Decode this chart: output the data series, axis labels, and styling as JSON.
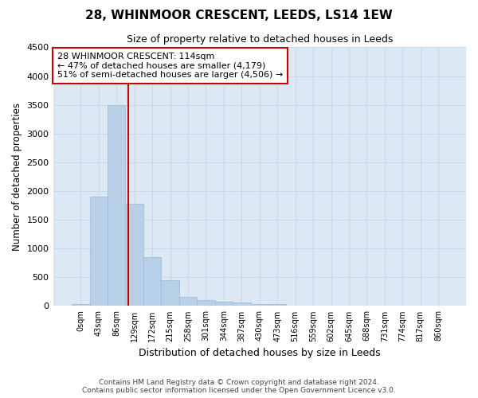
{
  "title": "28, WHINMOOR CRESCENT, LEEDS, LS14 1EW",
  "subtitle": "Size of property relative to detached houses in Leeds",
  "xlabel": "Distribution of detached houses by size in Leeds",
  "ylabel": "Number of detached properties",
  "bar_color": "#b8d0e8",
  "bar_edge_color": "#9ab8d8",
  "grid_color": "#c8d8ea",
  "background_color": "#dce8f4",
  "categories": [
    "0sqm",
    "43sqm",
    "86sqm",
    "129sqm",
    "172sqm",
    "215sqm",
    "258sqm",
    "301sqm",
    "344sqm",
    "387sqm",
    "430sqm",
    "473sqm",
    "516sqm",
    "559sqm",
    "602sqm",
    "645sqm",
    "688sqm",
    "731sqm",
    "774sqm",
    "817sqm",
    "860sqm"
  ],
  "values": [
    30,
    1900,
    3500,
    1780,
    850,
    450,
    165,
    100,
    75,
    55,
    35,
    30,
    0,
    0,
    0,
    0,
    0,
    0,
    0,
    0,
    0
  ],
  "ylim": [
    0,
    4500
  ],
  "yticks": [
    0,
    500,
    1000,
    1500,
    2000,
    2500,
    3000,
    3500,
    4000,
    4500
  ],
  "property_line_x": 2.65,
  "annotation_text": "28 WHINMOOR CRESCENT: 114sqm\n← 47% of detached houses are smaller (4,179)\n51% of semi-detached houses are larger (4,506) →",
  "annotation_box_color": "#ffffff",
  "annotation_box_edge": "#cc0000",
  "property_line_color": "#cc0000",
  "footer_text": "Contains HM Land Registry data © Crown copyright and database right 2024.\nContains public sector information licensed under the Open Government Licence v3.0.",
  "figsize": [
    6.0,
    5.0
  ],
  "dpi": 100
}
